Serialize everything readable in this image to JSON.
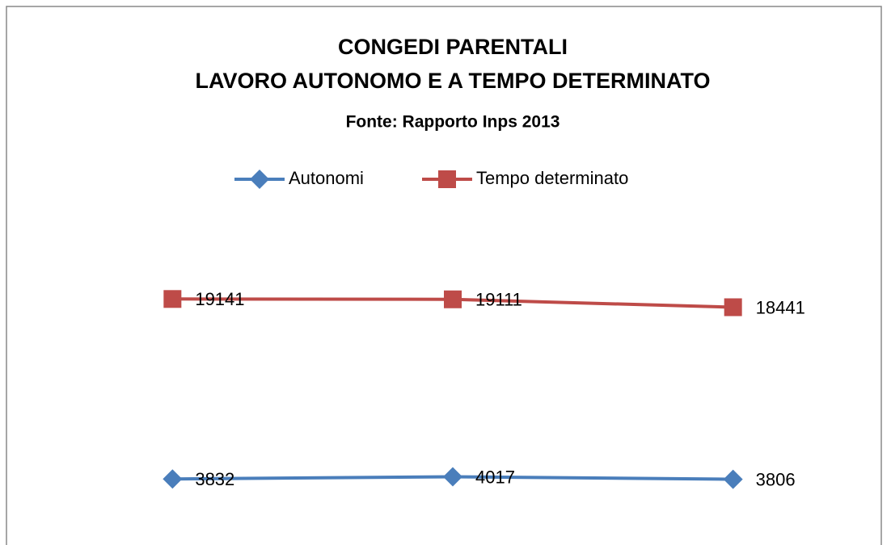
{
  "chart_data": {
    "type": "line",
    "title": [
      "CONGEDI PARENTALI",
      "LAVORO AUTONOMO E A TEMPO DETERMINATO"
    ],
    "subtitle": "Fonte: Rapporto Inps 2013",
    "categories": [
      null,
      null,
      null
    ],
    "series": [
      {
        "name": "Autonomi",
        "color": "#4a7ebb",
        "marker": "diamond",
        "values": [
          3832,
          4017,
          3806
        ]
      },
      {
        "name": "Tempo determinato",
        "color": "#be4b48",
        "marker": "square",
        "values": [
          19141,
          19111,
          18441
        ]
      }
    ],
    "ylim": [
      0,
      25000
    ],
    "legend": "top"
  }
}
